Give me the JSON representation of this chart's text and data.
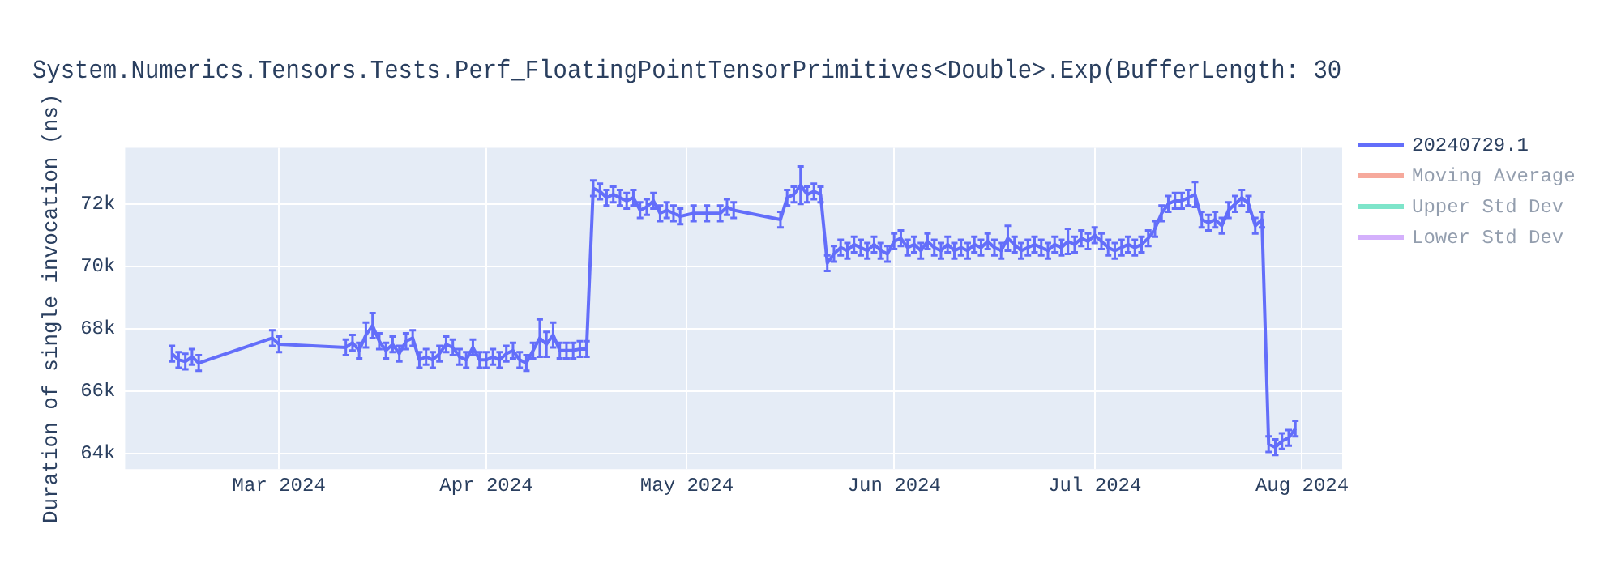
{
  "chart_data": {
    "type": "line",
    "title": "System.Numerics.Tensors.Tests.Perf_FloatingPointTensorPrimitives<Double>.Exp(BufferLength: 30",
    "ylabel": "Duration of single invocation (ns)",
    "x": [
      "2024-02-14",
      "2024-02-15",
      "2024-02-16",
      "2024-02-17",
      "2024-02-18",
      "2024-02-29",
      "2024-03-01",
      "2024-03-11",
      "2024-03-12",
      "2024-03-13",
      "2024-03-14",
      "2024-03-15",
      "2024-03-16",
      "2024-03-17",
      "2024-03-18",
      "2024-03-19",
      "2024-03-20",
      "2024-03-21",
      "2024-03-22",
      "2024-03-23",
      "2024-03-24",
      "2024-03-25",
      "2024-03-26",
      "2024-03-27",
      "2024-03-28",
      "2024-03-29",
      "2024-03-30",
      "2024-03-31",
      "2024-04-01",
      "2024-04-02",
      "2024-04-03",
      "2024-04-04",
      "2024-04-05",
      "2024-04-06",
      "2024-04-07",
      "2024-04-08",
      "2024-04-09",
      "2024-04-10",
      "2024-04-11",
      "2024-04-12",
      "2024-04-13",
      "2024-04-14",
      "2024-04-15",
      "2024-04-16",
      "2024-04-17",
      "2024-04-18",
      "2024-04-19",
      "2024-04-20",
      "2024-04-21",
      "2024-04-22",
      "2024-04-23",
      "2024-04-24",
      "2024-04-25",
      "2024-04-26",
      "2024-04-27",
      "2024-04-28",
      "2024-04-29",
      "2024-04-30",
      "2024-05-02",
      "2024-05-04",
      "2024-05-06",
      "2024-05-07",
      "2024-05-08",
      "2024-05-15",
      "2024-05-16",
      "2024-05-17",
      "2024-05-18",
      "2024-05-19",
      "2024-05-20",
      "2024-05-21",
      "2024-05-22",
      "2024-05-23",
      "2024-05-24",
      "2024-05-25",
      "2024-05-26",
      "2024-05-27",
      "2024-05-28",
      "2024-05-29",
      "2024-05-30",
      "2024-05-31",
      "2024-06-01",
      "2024-06-02",
      "2024-06-03",
      "2024-06-04",
      "2024-06-05",
      "2024-06-06",
      "2024-06-07",
      "2024-06-08",
      "2024-06-09",
      "2024-06-10",
      "2024-06-11",
      "2024-06-12",
      "2024-06-13",
      "2024-06-14",
      "2024-06-15",
      "2024-06-16",
      "2024-06-17",
      "2024-06-18",
      "2024-06-19",
      "2024-06-20",
      "2024-06-21",
      "2024-06-22",
      "2024-06-23",
      "2024-06-24",
      "2024-06-25",
      "2024-06-26",
      "2024-06-27",
      "2024-06-28",
      "2024-06-29",
      "2024-06-30",
      "2024-07-01",
      "2024-07-02",
      "2024-07-03",
      "2024-07-04",
      "2024-07-05",
      "2024-07-06",
      "2024-07-07",
      "2024-07-08",
      "2024-07-09",
      "2024-07-10",
      "2024-07-11",
      "2024-07-12",
      "2024-07-13",
      "2024-07-14",
      "2024-07-15",
      "2024-07-16",
      "2024-07-17",
      "2024-07-18",
      "2024-07-19",
      "2024-07-20",
      "2024-07-21",
      "2024-07-22",
      "2024-07-23",
      "2024-07-24",
      "2024-07-25",
      "2024-07-26",
      "2024-07-27",
      "2024-07-28",
      "2024-07-29",
      "2024-07-30",
      "2024-07-31"
    ],
    "series": [
      {
        "name": "20240729.1",
        "color": "#636efa",
        "values": [
          67200,
          67000,
          66950,
          67100,
          66900,
          67700,
          67500,
          67400,
          67550,
          67300,
          67800,
          68100,
          67600,
          67300,
          67500,
          67200,
          67600,
          67700,
          67000,
          67100,
          67000,
          67200,
          67500,
          67400,
          67100,
          67000,
          67400,
          67000,
          67000,
          67100,
          67000,
          67200,
          67300,
          67000,
          66900,
          67300,
          67700,
          67500,
          67800,
          67300,
          67300,
          67300,
          67350,
          67350,
          72500,
          72400,
          72200,
          72300,
          72200,
          72100,
          72200,
          71800,
          71900,
          72100,
          71700,
          71800,
          71700,
          71600,
          71700,
          71700,
          71700,
          71900,
          71800,
          71500,
          72200,
          72300,
          72600,
          72300,
          72400,
          72300,
          70100,
          70400,
          70600,
          70500,
          70700,
          70600,
          70500,
          70700,
          70500,
          70400,
          70800,
          70900,
          70600,
          70700,
          70500,
          70800,
          70600,
          70500,
          70700,
          70500,
          70600,
          70500,
          70700,
          70600,
          70800,
          70600,
          70500,
          70900,
          70700,
          70500,
          70600,
          70700,
          70600,
          70500,
          70700,
          70600,
          70800,
          70700,
          70900,
          70800,
          71000,
          70800,
          70600,
          70500,
          70600,
          70700,
          70600,
          70700,
          70900,
          71200,
          71700,
          72000,
          72100,
          72100,
          72200,
          72300,
          71500,
          71400,
          71500,
          71300,
          71800,
          72000,
          72200,
          72000,
          71300,
          71500,
          64300,
          64200,
          64400,
          64500,
          64800
        ],
        "errors": [
          250,
          250,
          250,
          250,
          250,
          250,
          250,
          250,
          250,
          250,
          400,
          400,
          250,
          250,
          250,
          250,
          250,
          250,
          250,
          250,
          250,
          250,
          250,
          250,
          250,
          250,
          250,
          250,
          250,
          250,
          250,
          250,
          250,
          250,
          250,
          250,
          600,
          400,
          400,
          250,
          250,
          250,
          250,
          250,
          250,
          250,
          250,
          250,
          250,
          250,
          250,
          250,
          250,
          250,
          250,
          250,
          250,
          250,
          250,
          250,
          250,
          250,
          250,
          250,
          250,
          250,
          600,
          250,
          250,
          250,
          250,
          250,
          250,
          250,
          250,
          250,
          250,
          250,
          250,
          250,
          250,
          250,
          250,
          250,
          250,
          250,
          250,
          250,
          250,
          250,
          250,
          250,
          250,
          250,
          250,
          250,
          250,
          400,
          250,
          250,
          250,
          250,
          250,
          250,
          250,
          250,
          400,
          250,
          250,
          250,
          250,
          250,
          250,
          250,
          250,
          250,
          250,
          250,
          250,
          250,
          250,
          250,
          250,
          250,
          250,
          400,
          250,
          250,
          250,
          250,
          250,
          250,
          250,
          250,
          250,
          250,
          250,
          250,
          250,
          250,
          250
        ]
      },
      {
        "name": "Moving Average",
        "color": "#ef553b",
        "values": [
          null,
          null,
          null,
          null,
          null,
          null,
          null,
          null,
          null,
          null,
          null,
          null,
          null,
          null,
          null,
          null,
          null,
          null,
          null,
          null,
          null,
          null,
          null,
          null,
          null,
          null,
          null,
          null,
          null,
          null,
          null,
          null,
          null,
          null,
          null,
          null,
          null,
          null,
          null,
          null,
          null,
          null,
          null,
          null,
          null,
          null,
          null,
          null,
          null,
          null,
          null,
          null,
          null,
          null,
          null,
          null,
          null,
          null,
          null,
          null,
          null,
          null,
          null,
          null,
          null,
          null,
          null,
          null,
          null,
          null,
          null,
          null,
          null,
          null,
          null,
          null,
          null,
          null,
          null,
          null,
          null,
          null,
          null,
          null,
          null,
          null,
          null,
          null,
          null,
          null,
          null,
          null,
          null,
          null,
          null,
          null,
          null,
          null,
          null,
          null,
          null,
          null,
          null,
          null,
          null,
          null,
          null,
          null,
          null,
          null,
          null,
          null,
          null,
          null,
          null,
          null,
          null,
          null,
          null,
          null,
          null,
          null,
          null,
          null,
          null,
          null,
          null,
          null,
          null,
          null,
          null,
          null,
          null,
          null,
          null,
          null,
          null,
          null,
          null,
          null,
          null
        ]
      },
      {
        "name": "Upper Std Dev",
        "color": "#00cc96",
        "values": [
          null,
          null,
          null,
          null,
          null,
          null,
          null,
          null,
          null,
          null,
          null,
          null,
          null,
          null,
          null,
          null,
          null,
          null,
          null,
          null,
          null,
          null,
          null,
          null,
          null,
          null,
          null,
          null,
          null,
          null,
          null,
          null,
          null,
          null,
          null,
          null,
          null,
          null,
          null,
          null,
          null,
          null,
          null,
          null,
          null,
          null,
          null,
          null,
          null,
          null,
          null,
          null,
          null,
          null,
          null,
          null,
          null,
          null,
          null,
          null,
          null,
          null,
          null,
          null,
          null,
          null,
          null,
          null,
          null,
          null,
          null,
          null,
          null,
          null,
          null,
          null,
          null,
          null,
          null,
          null,
          null,
          null,
          null,
          null,
          null,
          null,
          null,
          null,
          null,
          null,
          null,
          null,
          null,
          null,
          null,
          null,
          null,
          null,
          null,
          null,
          null,
          null,
          null,
          null,
          null,
          null,
          null,
          null,
          null,
          null,
          null,
          null,
          null,
          null,
          null,
          null,
          null,
          null,
          null,
          null,
          null,
          null,
          null,
          null,
          null,
          null,
          null,
          null,
          null,
          null,
          null,
          null,
          null,
          null,
          null,
          null,
          null,
          null,
          null,
          null,
          null
        ]
      },
      {
        "name": "Lower Std Dev",
        "color": "#ab63fa",
        "values": [
          null,
          null,
          null,
          null,
          null,
          null,
          null,
          null,
          null,
          null,
          null,
          null,
          null,
          null,
          null,
          null,
          null,
          null,
          null,
          null,
          null,
          null,
          null,
          null,
          null,
          null,
          null,
          null,
          null,
          null,
          null,
          null,
          null,
          null,
          null,
          null,
          null,
          null,
          null,
          null,
          null,
          null,
          null,
          null,
          null,
          null,
          null,
          null,
          null,
          null,
          null,
          null,
          null,
          null,
          null,
          null,
          null,
          null,
          null,
          null,
          null,
          null,
          null,
          null,
          null,
          null,
          null,
          null,
          null,
          null,
          null,
          null,
          null,
          null,
          null,
          null,
          null,
          null,
          null,
          null,
          null,
          null,
          null,
          null,
          null,
          null,
          null,
          null,
          null,
          null,
          null,
          null,
          null,
          null,
          null,
          null,
          null,
          null,
          null,
          null,
          null,
          null,
          null,
          null,
          null,
          null,
          null,
          null,
          null,
          null,
          null,
          null,
          null,
          null,
          null,
          null,
          null,
          null,
          null,
          null,
          null,
          null,
          null,
          null,
          null,
          null,
          null,
          null,
          null,
          null,
          null,
          null,
          null,
          null,
          null,
          null,
          null,
          null,
          null,
          null,
          null
        ]
      }
    ],
    "xlim": [
      "2024-02-07",
      "2024-08-07"
    ],
    "xticks": [
      {
        "value": "2024-03-01",
        "label": "Mar 2024"
      },
      {
        "value": "2024-04-01",
        "label": "Apr 2024"
      },
      {
        "value": "2024-05-01",
        "label": "May 2024"
      },
      {
        "value": "2024-06-01",
        "label": "Jun 2024"
      },
      {
        "value": "2024-07-01",
        "label": "Jul 2024"
      },
      {
        "value": "2024-08-01",
        "label": "Aug 2024"
      }
    ],
    "ylim": [
      63500,
      73800
    ],
    "yticks": [
      {
        "value": 64000,
        "label": "64k"
      },
      {
        "value": 66000,
        "label": "66k"
      },
      {
        "value": 68000,
        "label": "68k"
      },
      {
        "value": 70000,
        "label": "70k"
      },
      {
        "value": 72000,
        "label": "72k"
      }
    ],
    "grid": true,
    "legend": "right",
    "line_style": "solid"
  }
}
